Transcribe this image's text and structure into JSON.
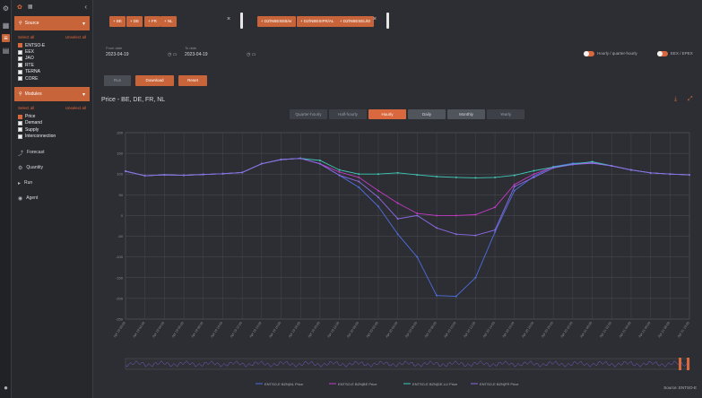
{
  "sidebar": {
    "source_label": "Source",
    "source_select_all": "Select all",
    "source_unselect_all": "Unselect all",
    "sources": [
      {
        "label": "ENTSO-E",
        "checked": true
      },
      {
        "label": "EEX",
        "checked": false
      },
      {
        "label": "JAO",
        "checked": false
      },
      {
        "label": "RTE",
        "checked": false
      },
      {
        "label": "TERNA",
        "checked": false
      },
      {
        "label": "CORE",
        "checked": false
      }
    ],
    "modules_label": "Modules",
    "modules_select_all": "Select all",
    "modules_unselect_all": "Unselect all",
    "modules": [
      {
        "label": "Price",
        "checked": true
      },
      {
        "label": "Demand",
        "checked": false
      },
      {
        "label": "Supply",
        "checked": false
      },
      {
        "label": "Interconnection",
        "checked": false
      }
    ],
    "nav": [
      {
        "label": "Forecast",
        "icon": "trend-icon"
      },
      {
        "label": "Quantity",
        "icon": "gear-icon"
      },
      {
        "label": "Run",
        "icon": "play-icon"
      },
      {
        "label": "Agent",
        "icon": "agent-icon"
      }
    ]
  },
  "filters": {
    "countries": [
      "+ BE",
      "+ DE",
      "+ FR",
      "+ NL"
    ],
    "series": [
      "+ DZ/NBESEB/er",
      "+ DZ/NBESIFR/AL",
      "+ DZ/NBESEL/EI"
    ]
  },
  "dates": {
    "from_label": "From date",
    "from_value": "2023-04-19",
    "to_label": "To date",
    "to_value": "2023-04-19"
  },
  "toggles": [
    {
      "label": "Hourly / quarter-hourly"
    },
    {
      "label": "EEX / EPEX"
    }
  ],
  "actions": {
    "run": "Run",
    "download": "Download",
    "reset": "Reset"
  },
  "chart_header": {
    "title": "Price - BE, DE, FR, NL",
    "ranges": [
      "Quarter-hourly",
      "Half-hourly",
      "Hourly",
      "Daily",
      "Monthly",
      "Yearly"
    ],
    "active_range": "Hourly"
  },
  "colors": {
    "accent": "#d9683e",
    "series": [
      "#4f6fe0",
      "#c33ac4",
      "#3fc9b8",
      "#8d6ae6"
    ]
  },
  "chart_data": {
    "type": "line",
    "x": [
      "Apr 19 00:00",
      "Apr 19 02:00",
      "Apr 19 04:00",
      "Apr 19 06:00",
      "Apr 19 08:00",
      "Apr 19 10:00",
      "Apr 19 12:00",
      "Apr 19 14:00",
      "Apr 19 16:00",
      "Apr 19 18:00",
      "Apr 19 20:00",
      "Apr 19 22:00",
      "Apr 20 00:00",
      "Apr 20 02:00",
      "Apr 20 04:00",
      "Apr 20 06:00",
      "Apr 20 08:00",
      "Apr 20 10:00",
      "Apr 20 12:00",
      "Apr 20 14:00",
      "Apr 20 16:00",
      "Apr 20 18:00",
      "Apr 20 20:00",
      "Apr 20 22:00",
      "Apr 21 00:00",
      "Apr 21 02:00",
      "Apr 21 04:00",
      "Apr 21 06:00",
      "Apr 21 08:00",
      "Apr 21 10:00"
    ],
    "ylim": [
      -250,
      200
    ],
    "yticks": [
      200,
      150,
      100,
      50,
      0,
      -50,
      -100,
      -150,
      -200,
      -250
    ],
    "series": [
      {
        "name": "ENTSO-E BZN|NL Price",
        "values": [
          107,
          96,
          98,
          97,
          99,
          101,
          104,
          125,
          135,
          138,
          125,
          97,
          68,
          22,
          -45,
          -100,
          -193,
          -195,
          -150,
          -40,
          60,
          95,
          118,
          126,
          128,
          120,
          110,
          103,
          100,
          98
        ]
      },
      {
        "name": "ENTSO-E BZN|BE Price",
        "values": [
          107,
          96,
          98,
          97,
          99,
          101,
          104,
          125,
          135,
          138,
          125,
          105,
          92,
          60,
          30,
          5,
          0,
          0,
          2,
          20,
          75,
          100,
          117,
          124,
          127,
          120,
          110,
          103,
          100,
          98
        ]
      },
      {
        "name": "ENTSO-E BZN|DE-LU Price",
        "values": [
          107,
          96,
          98,
          97,
          99,
          101,
          104,
          125,
          135,
          138,
          133,
          110,
          100,
          100,
          103,
          98,
          94,
          92,
          91,
          92,
          97,
          108,
          117,
          124,
          130,
          120,
          110,
          103,
          100,
          98
        ]
      },
      {
        "name": "ENTSO-E BZN|FR Price",
        "values": [
          107,
          96,
          98,
          97,
          99,
          101,
          104,
          125,
          135,
          138,
          125,
          97,
          82,
          44,
          -8,
          0,
          -30,
          -45,
          -48,
          -35,
          70,
          92,
          115,
          123,
          126,
          120,
          110,
          103,
          100,
          98
        ]
      }
    ]
  },
  "source_text": "Source: ENTSO-E"
}
